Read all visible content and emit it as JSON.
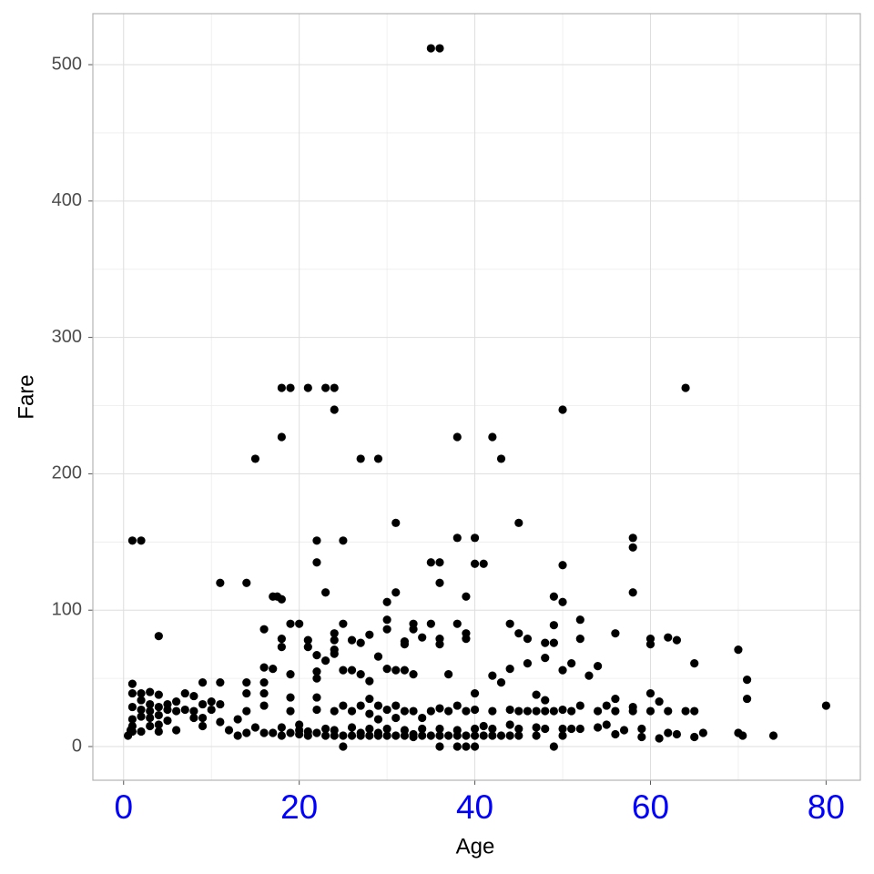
{
  "chart_data": {
    "type": "scatter",
    "xlabel": "Age",
    "ylabel": "Fare",
    "color": "#000000",
    "xlim": [
      -3.5,
      83.9
    ],
    "ylim": [
      -24.7,
      537.4
    ],
    "xticks": [
      0,
      20,
      40,
      60,
      80
    ],
    "yticks": [
      0,
      100,
      200,
      300,
      400,
      500
    ],
    "xminor": [
      10,
      30,
      50,
      70
    ],
    "yminor": [
      50,
      150,
      250,
      350,
      450
    ],
    "grid": true,
    "x": [
      35,
      36,
      18,
      19,
      21,
      23,
      24,
      64,
      24,
      50,
      18,
      38,
      42,
      15,
      27,
      29,
      43,
      31,
      45,
      1,
      2,
      22,
      25,
      38,
      40,
      58,
      58,
      22,
      35,
      36,
      40,
      41,
      50,
      11,
      14,
      36,
      17,
      17.5,
      18,
      39,
      49,
      50,
      30,
      23,
      31,
      58,
      4,
      16,
      19,
      25,
      28,
      30,
      30,
      33,
      33,
      35,
      38,
      39,
      39,
      44,
      45,
      46,
      49,
      52,
      56,
      60,
      60,
      62,
      63,
      71,
      70,
      65,
      52,
      53,
      54,
      51,
      50,
      48,
      48,
      49,
      46,
      44,
      42,
      43,
      40,
      38,
      36,
      36,
      37,
      34,
      32,
      32,
      31,
      32,
      33,
      30,
      29,
      28,
      27,
      27,
      26,
      26,
      25,
      24,
      24,
      24,
      24,
      23,
      22,
      22,
      22,
      21,
      21,
      20,
      19,
      18,
      18,
      16,
      17,
      16,
      16,
      14,
      14,
      11,
      9,
      7,
      1,
      1,
      2,
      3,
      4,
      5,
      6,
      8,
      10,
      11,
      12,
      13,
      13,
      14,
      14,
      15,
      16,
      16,
      17,
      18,
      18,
      19,
      19,
      19,
      20,
      20,
      20,
      21,
      21,
      22,
      22,
      22,
      23,
      23,
      24,
      24,
      24,
      25,
      25,
      25,
      26,
      26,
      26,
      27,
      27,
      27,
      28,
      28,
      28,
      28,
      29,
      29,
      29,
      29,
      30,
      30,
      30,
      31,
      31,
      31,
      32,
      32,
      32,
      33,
      33,
      33,
      34,
      34,
      34,
      35,
      35,
      36,
      36,
      36,
      36,
      37,
      37,
      38,
      38,
      38,
      39,
      39,
      39,
      40,
      40,
      40,
      40,
      41,
      41,
      42,
      42,
      42,
      43,
      44,
      44,
      44,
      45,
      45,
      45,
      46,
      47,
      47,
      47,
      47,
      48,
      48,
      48,
      49,
      49,
      50,
      50,
      50,
      51,
      51,
      52,
      52,
      54,
      54,
      55,
      55,
      56,
      56,
      56,
      57,
      58,
      58,
      59,
      59,
      60,
      60,
      61,
      61,
      62,
      62,
      63,
      64,
      65,
      65,
      66,
      70,
      70.5,
      71,
      74,
      80,
      0.5,
      1,
      1,
      1,
      2,
      2,
      2,
      3,
      3,
      3,
      4,
      4,
      4,
      4,
      5,
      5,
      6,
      7,
      8,
      8,
      9,
      9,
      10,
      11,
      1,
      0.8,
      3,
      6,
      2,
      9
    ],
    "values": [
      512,
      512,
      263,
      263,
      263,
      263,
      263,
      263,
      247,
      247,
      227,
      227,
      227,
      211,
      211,
      211,
      211,
      164,
      164,
      151,
      151,
      151,
      151,
      153,
      153,
      153,
      146,
      135,
      135,
      135,
      134,
      134,
      133,
      120,
      120,
      120,
      110,
      110,
      108,
      110,
      110,
      106,
      106,
      113,
      113,
      113,
      81,
      86,
      90,
      90,
      82,
      93,
      86,
      90,
      86,
      90,
      90,
      83,
      79,
      90,
      83,
      79,
      89,
      93,
      83,
      79,
      75,
      80,
      78,
      49,
      71,
      61,
      79,
      52,
      59,
      61,
      56,
      65,
      76,
      76,
      61,
      57,
      52,
      47,
      39,
      30,
      75,
      79,
      53,
      80,
      77,
      75,
      56,
      56,
      53,
      57,
      66,
      48,
      76,
      53,
      78,
      56,
      56,
      78,
      83,
      71,
      68,
      63,
      67,
      55,
      50,
      78,
      73,
      90,
      53,
      79,
      73,
      58,
      57,
      47,
      39,
      47,
      39,
      47,
      47,
      39,
      46,
      39,
      39,
      40,
      38,
      31,
      33,
      37,
      33,
      31,
      12,
      20,
      8,
      26,
      10,
      14,
      10,
      30,
      10,
      8,
      14,
      10,
      26,
      36,
      9,
      12,
      16,
      8,
      11,
      10,
      27,
      36,
      8,
      13,
      8,
      12,
      26,
      0,
      8,
      30,
      8,
      14,
      26,
      8,
      10,
      30,
      8,
      13,
      24,
      35,
      8,
      10,
      20,
      30,
      8,
      13,
      27,
      8,
      21,
      30,
      8,
      12,
      26,
      7,
      9,
      26,
      8,
      13,
      21,
      8,
      26,
      0,
      8,
      13,
      28,
      8,
      26,
      0,
      8,
      12,
      0,
      8,
      26,
      0,
      8,
      13,
      27,
      8,
      15,
      8,
      13,
      26,
      8,
      8,
      16,
      27,
      8,
      13,
      26,
      26,
      8,
      14,
      26,
      38,
      13,
      26,
      34,
      0,
      26,
      8,
      13,
      27,
      13,
      26,
      30,
      13,
      14,
      26,
      16,
      30,
      9,
      26,
      35,
      12,
      26,
      29,
      13,
      7,
      26,
      39,
      33,
      6,
      26,
      10,
      9,
      26,
      26,
      7,
      10,
      10,
      8,
      35,
      8,
      30,
      8,
      11,
      20,
      29,
      11,
      22,
      27,
      15,
      26,
      31,
      11,
      16,
      23,
      29,
      19,
      27,
      12,
      27,
      21,
      26,
      15,
      21,
      27,
      18,
      15,
      12,
      21,
      26,
      34,
      31
    ]
  }
}
